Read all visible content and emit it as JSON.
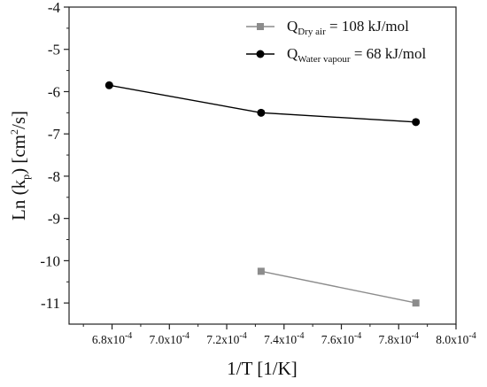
{
  "chart_data": {
    "type": "line",
    "xlabel": "1/T [1/K]",
    "ylabel": "Ln (kp) [cm2/s]",
    "ylabel_parts": {
      "main": "Ln (k",
      "sub": "p",
      "mid": ") [cm",
      "sup": "2",
      "end": "/s]"
    },
    "xlim": [
      0.000665,
      0.0008
    ],
    "ylim": [
      -11.5,
      -4
    ],
    "xticks": [
      0.00068,
      0.0007,
      0.00072,
      0.00074,
      0.00076,
      0.00078,
      0.0008
    ],
    "xtick_labels": [
      {
        "mant": "6.8x10",
        "exp": "-4"
      },
      {
        "mant": "7.0x10",
        "exp": "-4"
      },
      {
        "mant": "7.2x10",
        "exp": "-4"
      },
      {
        "mant": "7.4x10",
        "exp": "-4"
      },
      {
        "mant": "7.6x10",
        "exp": "-4"
      },
      {
        "mant": "7.8x10",
        "exp": "-4"
      },
      {
        "mant": "8.0x10",
        "exp": "-4"
      }
    ],
    "yticks": [
      -4,
      -5,
      -6,
      -7,
      -8,
      -9,
      -10,
      -11
    ],
    "ytick_labels": [
      "-4",
      "-5",
      "-6",
      "-7",
      "-8",
      "-9",
      "-10",
      "-11"
    ],
    "grid": false,
    "legend_position": "top-right",
    "series": [
      {
        "name": "QDry air = 108 kJ/mol",
        "label_parts": {
          "main": "Q",
          "sub": "Dry air",
          "rest": " = 108 kJ/mol"
        },
        "marker": "square",
        "color": "#8c8c8c",
        "x": [
          0.000732,
          0.000786
        ],
        "y": [
          -10.25,
          -11.0
        ]
      },
      {
        "name": "QWater vapour = 68 kJ/mol",
        "label_parts": {
          "main": "Q",
          "sub": "Water vapour",
          "rest": " = 68 kJ/mol"
        },
        "marker": "circle",
        "color": "#000000",
        "x": [
          0.000679,
          0.000732,
          0.000786
        ],
        "y": [
          -5.85,
          -6.5,
          -6.72
        ]
      }
    ]
  }
}
